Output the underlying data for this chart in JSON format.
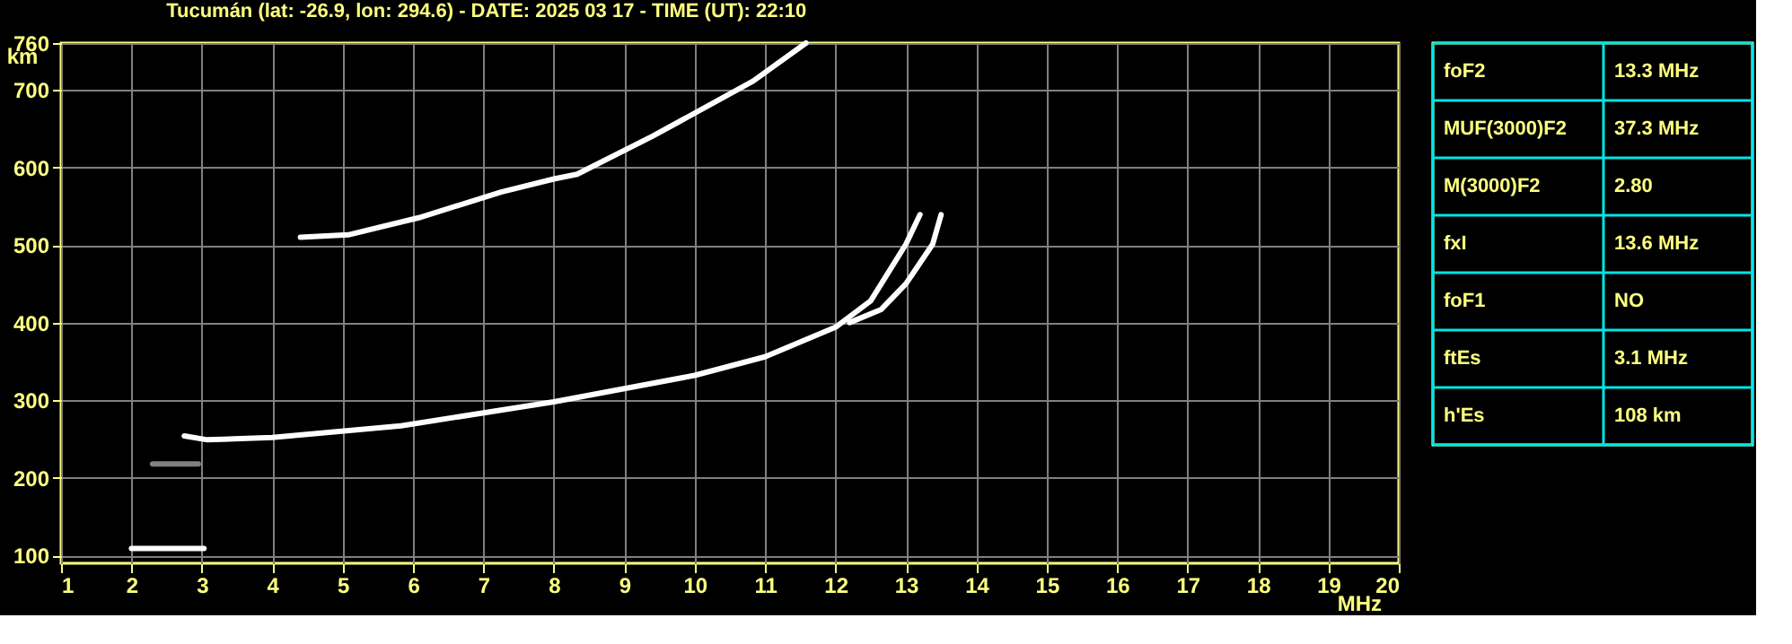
{
  "chart_data": [
    {
      "type": "line",
      "title": "Tucumán (lat: -26.9, lon: 294.6) - DATE: 2025 03 17 - TIME (UT): 22:10",
      "xlabel": "MHz",
      "ylabel": "km",
      "xlim": [
        1,
        20
      ],
      "ylim": [
        90,
        760
      ],
      "xticks": [
        1,
        2,
        3,
        4,
        5,
        6,
        7,
        8,
        9,
        10,
        11,
        12,
        13,
        14,
        15,
        16,
        17,
        18,
        19,
        20
      ],
      "yticks": [
        100,
        200,
        300,
        400,
        500,
        600,
        700,
        760
      ],
      "grid": true,
      "legend": false,
      "marker": "none",
      "line_style": "solid",
      "series": [
        {
          "color": "#ffffff",
          "x": [
            2.0,
            2.5,
            3.03
          ],
          "values": [
            109,
            109,
            109
          ]
        },
        {
          "color": "#808080",
          "x": [
            2.3,
            2.95
          ],
          "values": [
            218,
            218
          ]
        },
        {
          "color": "#ffffff",
          "x": [
            2.75,
            3.08,
            4.0,
            5.83,
            8.0,
            10.0,
            11.0,
            12.0,
            12.5,
            13.0,
            13.2
          ],
          "values": [
            254,
            249,
            252,
            267,
            298,
            332,
            356,
            394,
            428,
            501,
            539
          ]
        },
        {
          "color": "#ffffff",
          "x": [
            12.2,
            12.65,
            13.0,
            13.38,
            13.5
          ],
          "values": [
            400,
            417,
            450,
            501,
            539
          ]
        },
        {
          "color": "#ffffff",
          "x": [
            4.4,
            5.08,
            6.08,
            7.25,
            8.0,
            8.33,
            9.4,
            10.83,
            11.58
          ],
          "values": [
            510,
            513,
            535,
            568,
            585,
            591,
            640,
            711,
            760
          ]
        }
      ]
    },
    {
      "type": "other",
      "annotations": [
        "foF2",
        "13.3 MHz",
        "MUF(3000)F2",
        "37.3 MHz",
        "M(3000)F2",
        "2.80",
        "fxI",
        "13.6 MHz",
        "foF1",
        "NO",
        "ftEs",
        "3.1 MHz",
        "h'Es",
        "108 km"
      ]
    }
  ]
}
